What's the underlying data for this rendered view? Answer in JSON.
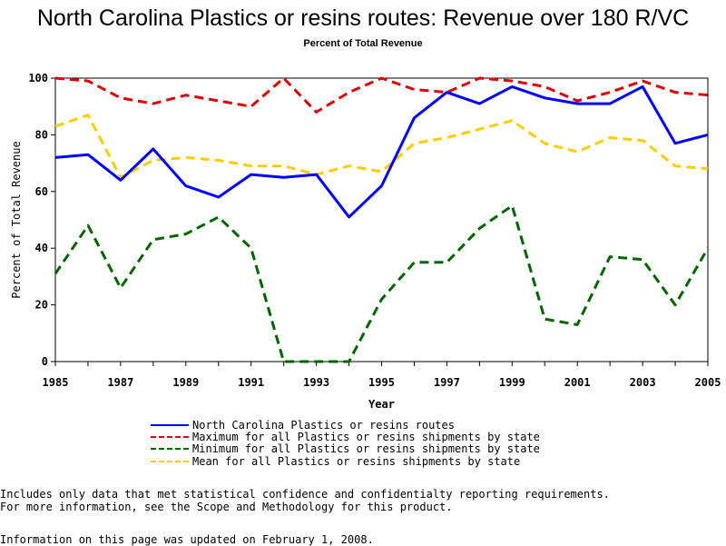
{
  "chart_data": {
    "type": "line",
    "title": "North Carolina Plastics or resins routes: Revenue over 180 R/VC",
    "subtitle": "Percent of Total Revenue",
    "xlabel": "Year",
    "ylabel": "Percent of Total Revenue",
    "xlim": [
      1985,
      2005
    ],
    "ylim": [
      0,
      100
    ],
    "x_ticks": [
      "1985",
      "1987",
      "1989",
      "1991",
      "1993",
      "1995",
      "1997",
      "1999",
      "2001",
      "2003",
      "2005"
    ],
    "y_ticks": [
      "0",
      "20",
      "40",
      "60",
      "80",
      "100"
    ],
    "x": [
      1985,
      1986,
      1987,
      1988,
      1989,
      1990,
      1991,
      1992,
      1993,
      1994,
      1995,
      1996,
      1997,
      1998,
      1999,
      2000,
      2001,
      2002,
      2003,
      2004,
      2005
    ],
    "series": [
      {
        "name": "North Carolina Plastics or resins routes",
        "color": "#0000ff",
        "style": "solid",
        "values": [
          72,
          73,
          64,
          75,
          62,
          58,
          66,
          65,
          66,
          51,
          62,
          86,
          95,
          91,
          97,
          93,
          91,
          91,
          97,
          77,
          80
        ]
      },
      {
        "name": "Maximum for all Plastics or resins shipments by state",
        "color": "#dd0000",
        "style": "dashed",
        "values": [
          100,
          99,
          93,
          91,
          94,
          92,
          90,
          100,
          88,
          95,
          100,
          96,
          95,
          100,
          99,
          97,
          92,
          95,
          99,
          95,
          94
        ]
      },
      {
        "name": "Minimum for all Plastics or resins shipments by state",
        "color": "#006600",
        "style": "dashed",
        "values": [
          31,
          48,
          26,
          43,
          45,
          51,
          40,
          0,
          0,
          0,
          22,
          35,
          35,
          47,
          55,
          15,
          13,
          37,
          36,
          20,
          40
        ]
      },
      {
        "name": "Mean for all Plastics or resins shipments by state",
        "color": "#ffcc00",
        "style": "dashed",
        "values": [
          83,
          87,
          65,
          71,
          72,
          71,
          69,
          69,
          66,
          69,
          67,
          77,
          79,
          82,
          85,
          77,
          74,
          79,
          78,
          69,
          68
        ]
      }
    ]
  },
  "footer": {
    "note_line1": "Includes only data that met statistical confidence and confidentialty reporting requirements.",
    "note_line2": "For more information, see the Scope and Methodology for this product.",
    "updated": "Information on this page was updated on February 1, 2008."
  }
}
